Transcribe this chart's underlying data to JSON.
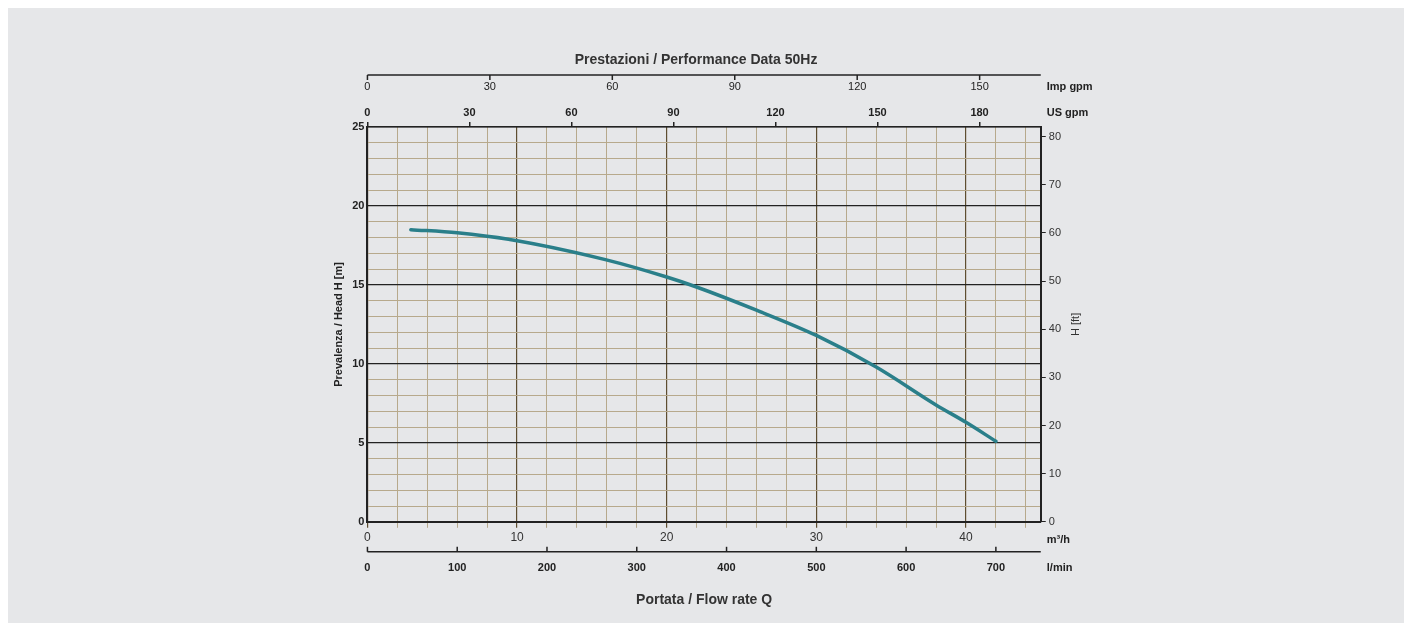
{
  "chart_data": {
    "type": "line",
    "title": "Prestazioni / Performance Data 50Hz",
    "xlabel": "Portata / Flow rate Q",
    "ylabel": "Prevalenza / Head H [m]",
    "y2label": "H [ft]",
    "x2label": "US gpm",
    "annotations": [
      "m³/h",
      "l/min",
      "0",
      "100",
      "200",
      "300",
      "400",
      "500",
      "600",
      "700",
      "Imp gpm",
      "0",
      "30",
      "60",
      "90",
      "120",
      "150"
    ],
    "xlim": [
      0,
      45
    ],
    "xticks": [
      0,
      {
        "value": 2,
        "label": null
      },
      {
        "value": 4,
        "label": null
      },
      {
        "value": 6,
        "label": null
      },
      {
        "value": 8,
        "label": null
      },
      10,
      {
        "value": 12,
        "label": null
      },
      {
        "value": 14,
        "label": null
      },
      {
        "value": 16,
        "label": null
      },
      {
        "value": 18,
        "label": null
      },
      20,
      {
        "value": 22,
        "label": null
      },
      {
        "value": 24,
        "label": null
      },
      {
        "value": 26,
        "label": null
      },
      {
        "value": 28,
        "label": null
      },
      30,
      {
        "value": 32,
        "label": null
      },
      {
        "value": 34,
        "label": null
      },
      {
        "value": 36,
        "label": null
      },
      {
        "value": 38,
        "label": null
      },
      40,
      {
        "value": 42,
        "label": null
      },
      {
        "value": 44,
        "label": null
      }
    ],
    "ylim": [
      0,
      25
    ],
    "yticks": [
      0,
      {
        "value": 1,
        "label": null
      },
      {
        "value": 2,
        "label": null
      },
      {
        "value": 3,
        "label": null
      },
      {
        "value": 4,
        "label": null
      },
      5,
      {
        "value": 6,
        "label": null
      },
      {
        "value": 7,
        "label": null
      },
      {
        "value": 8,
        "label": null
      },
      {
        "value": 9,
        "label": null
      },
      10,
      {
        "value": 11,
        "label": null
      },
      {
        "value": 12,
        "label": null
      },
      {
        "value": 13,
        "label": null
      },
      {
        "value": 14,
        "label": null
      },
      15,
      {
        "value": 16,
        "label": null
      },
      {
        "value": 17,
        "label": null
      },
      {
        "value": 18,
        "label": null
      },
      {
        "value": 19,
        "label": null
      },
      20,
      {
        "value": 21,
        "label": null
      },
      {
        "value": 22,
        "label": null
      },
      {
        "value": 23,
        "label": null
      },
      {
        "value": 24,
        "label": null
      },
      25
    ],
    "y2lim": [
      0,
      82
    ],
    "y2ticks": [
      0,
      10,
      20,
      30,
      40,
      50,
      60,
      70,
      80
    ],
    "x2lim": [
      0,
      198
    ],
    "x2ticks": [
      0,
      30,
      60,
      90,
      120,
      150,
      180
    ],
    "grid": true,
    "legend": false,
    "marker": "none",
    "line_style": "solid",
    "series": [
      {
        "color": "#2a7f8a",
        "x": [
          2.9,
          6,
          10,
          15.9,
          20,
          21.9,
          26,
          30,
          34,
          38,
          40,
          42
        ],
        "values": [
          18.5,
          18.3,
          17.8,
          16.6,
          15.5,
          14.9,
          13.4,
          11.8,
          9.8,
          7.4,
          6.3,
          5.1
        ]
      }
    ]
  }
}
